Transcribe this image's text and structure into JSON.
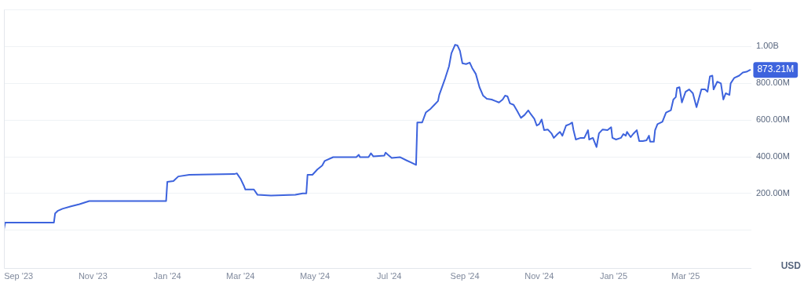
{
  "chart_data": {
    "type": "line",
    "ylabel": "USD",
    "grid": "y",
    "legend": false,
    "marker": "none",
    "line_style": "solid",
    "xlim": [
      "2023-08-20",
      "2025-04-24"
    ],
    "xticks": [
      {
        "value": "2023-09-01",
        "label": "Sep '23"
      },
      {
        "value": "2023-11-01",
        "label": "Nov '23"
      },
      {
        "value": "2024-01-01",
        "label": "Jan '24"
      },
      {
        "value": "2024-03-01",
        "label": "Mar '24"
      },
      {
        "value": "2024-05-01",
        "label": "May '24"
      },
      {
        "value": "2024-07-01",
        "label": "Jul '24"
      },
      {
        "value": "2024-09-01",
        "label": "Sep '24"
      },
      {
        "value": "2024-11-01",
        "label": "Nov '24"
      },
      {
        "value": "2025-01-01",
        "label": "Jan '25"
      },
      {
        "value": "2025-03-01",
        "label": "Mar '25"
      }
    ],
    "ylim": [
      -210000000,
      1200000000
    ],
    "yticks": [
      {
        "value": 0,
        "label": null
      },
      {
        "value": 200000000,
        "label": "200.00M"
      },
      {
        "value": 400000000,
        "label": "400.00M"
      },
      {
        "value": 600000000,
        "label": "600.00M"
      },
      {
        "value": 800000000,
        "label": "800.00M"
      },
      {
        "value": 1000000000,
        "label": "1.00B"
      },
      {
        "value": 1200000000,
        "label": null
      }
    ],
    "annotations": [
      {
        "text": "873.21M",
        "x": "2025-04-23",
        "y": 873210000
      }
    ],
    "series": [
      {
        "color": "#3d63dd",
        "x": [
          "2023-08-20",
          "2023-08-21",
          "2023-09-30",
          "2023-10-01",
          "2023-10-03",
          "2023-10-07",
          "2023-10-14",
          "2023-10-21",
          "2023-10-29",
          "2023-12-31",
          "2024-01-01",
          "2024-01-06",
          "2024-01-10",
          "2024-01-19",
          "2024-02-25",
          "2024-02-27",
          "2024-03-01",
          "2024-03-04",
          "2024-03-05",
          "2024-03-12",
          "2024-03-15",
          "2024-03-26",
          "2024-04-15",
          "2024-04-21",
          "2024-04-24",
          "2024-04-25",
          "2024-04-29",
          "2024-05-03",
          "2024-05-07",
          "2024-05-09",
          "2024-05-16",
          "2024-06-04",
          "2024-06-06",
          "2024-06-07",
          "2024-06-14",
          "2024-06-16",
          "2024-06-18",
          "2024-06-27",
          "2024-06-28",
          "2024-06-30",
          "2024-07-03",
          "2024-07-10",
          "2024-07-15",
          "2024-07-19",
          "2024-07-23",
          "2024-07-24",
          "2024-07-28",
          "2024-07-31",
          "2024-08-04",
          "2024-08-07",
          "2024-08-10",
          "2024-08-11",
          "2024-08-16",
          "2024-08-19",
          "2024-08-21",
          "2024-08-24",
          "2024-08-26",
          "2024-08-28",
          "2024-08-30",
          "2024-09-02",
          "2024-09-05",
          "2024-09-07",
          "2024-09-10",
          "2024-09-13",
          "2024-09-16",
          "2024-09-19",
          "2024-09-23",
          "2024-09-26",
          "2024-09-29",
          "2024-10-02",
          "2024-10-04",
          "2024-10-06",
          "2024-10-08",
          "2024-10-11",
          "2024-10-14",
          "2024-10-17",
          "2024-10-20",
          "2024-10-23",
          "2024-10-25",
          "2024-10-28",
          "2024-10-30",
          "2024-11-01",
          "2024-11-03",
          "2024-11-05",
          "2024-11-08",
          "2024-11-11",
          "2024-11-13",
          "2024-11-16",
          "2024-11-18",
          "2024-11-20",
          "2024-11-23",
          "2024-11-26",
          "2024-11-28",
          "2024-11-29",
          "2024-12-01",
          "2024-12-05",
          "2024-12-08",
          "2024-12-11",
          "2024-12-12",
          "2024-12-15",
          "2024-12-18",
          "2024-12-20",
          "2024-12-23",
          "2024-12-27",
          "2024-12-30",
          "2024-12-31",
          "2025-01-03",
          "2025-01-07",
          "2025-01-09",
          "2025-01-11",
          "2025-01-12",
          "2025-01-15",
          "2025-01-17",
          "2025-01-20",
          "2025-01-22",
          "2025-01-25",
          "2025-01-28",
          "2025-01-30",
          "2025-01-31",
          "2025-02-03",
          "2025-02-04",
          "2025-02-06",
          "2025-02-10",
          "2025-02-13",
          "2025-02-17",
          "2025-02-19",
          "2025-02-21",
          "2025-02-22",
          "2025-02-24",
          "2025-02-26",
          "2025-03-01",
          "2025-03-04",
          "2025-03-07",
          "2025-03-10",
          "2025-03-14",
          "2025-03-17",
          "2025-03-19",
          "2025-03-21",
          "2025-03-23",
          "2025-03-24",
          "2025-03-27",
          "2025-03-30",
          "2025-04-01",
          "2025-04-03",
          "2025-04-06",
          "2025-04-07",
          "2025-04-10",
          "2025-04-14",
          "2025-04-17",
          "2025-04-20",
          "2025-04-23"
        ],
        "values": [
          5000000,
          42000000,
          42000000,
          92000000,
          105000000,
          117000000,
          130000000,
          142000000,
          159000000,
          159000000,
          264000000,
          268000000,
          293000000,
          302000000,
          306000000,
          310000000,
          281000000,
          239000000,
          222000000,
          222000000,
          193000000,
          189000000,
          193000000,
          201000000,
          201000000,
          302000000,
          302000000,
          331000000,
          352000000,
          377000000,
          398000000,
          398000000,
          411000000,
          398000000,
          398000000,
          419000000,
          402000000,
          407000000,
          423000000,
          411000000,
          394000000,
          398000000,
          381000000,
          369000000,
          356000000,
          587000000,
          587000000,
          641000000,
          662000000,
          683000000,
          704000000,
          737000000,
          830000000,
          892000000,
          964000000,
          1010000000,
          1006000000,
          977000000,
          909000000,
          905000000,
          913000000,
          884000000,
          851000000,
          779000000,
          733000000,
          716000000,
          712000000,
          704000000,
          696000000,
          712000000,
          733000000,
          729000000,
          691000000,
          683000000,
          649000000,
          612000000,
          628000000,
          653000000,
          633000000,
          607000000,
          570000000,
          578000000,
          603000000,
          545000000,
          549000000,
          528000000,
          503000000,
          524000000,
          536000000,
          515000000,
          570000000,
          578000000,
          587000000,
          549000000,
          494000000,
          503000000,
          503000000,
          545000000,
          494000000,
          503000000,
          453000000,
          528000000,
          549000000,
          545000000,
          561000000,
          503000000,
          494000000,
          503000000,
          524000000,
          515000000,
          536000000,
          507000000,
          524000000,
          545000000,
          486000000,
          486000000,
          490000000,
          515000000,
          482000000,
          482000000,
          545000000,
          578000000,
          591000000,
          641000000,
          654000000,
          712000000,
          725000000,
          775000000,
          779000000,
          696000000,
          754000000,
          767000000,
          746000000,
          670000000,
          767000000,
          767000000,
          754000000,
          838000000,
          842000000,
          767000000,
          809000000,
          800000000,
          712000000,
          746000000,
          737000000,
          800000000,
          830000000,
          842000000,
          859000000,
          863000000,
          873210000
        ]
      }
    ]
  }
}
